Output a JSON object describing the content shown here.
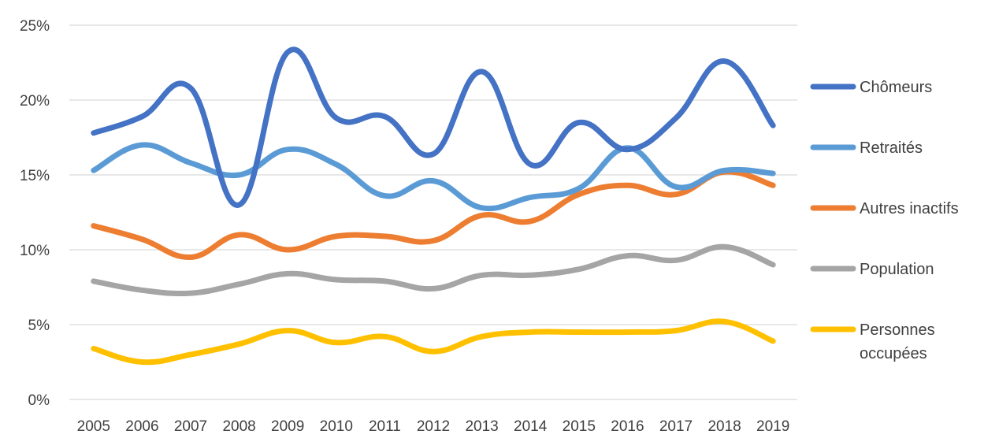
{
  "chart_data": {
    "type": "line",
    "title": "",
    "xlabel": "",
    "ylabel": "",
    "x": [
      "2005",
      "2006",
      "2007",
      "2008",
      "2009",
      "2010",
      "2011",
      "2012",
      "2013",
      "2014",
      "2015",
      "2016",
      "2017",
      "2018",
      "2019"
    ],
    "y_ticks": [
      "0%",
      "5%",
      "10%",
      "15%",
      "20%",
      "25%"
    ],
    "ylim": [
      0,
      25
    ],
    "grid": true,
    "legend_position": "right",
    "smooth": true,
    "series": [
      {
        "name": "Chômeurs",
        "color": "#4472C4",
        "values": [
          17.8,
          18.9,
          20.8,
          13.0,
          23.2,
          18.8,
          18.9,
          16.4,
          21.9,
          15.7,
          18.5,
          16.7,
          18.8,
          22.6,
          18.3
        ]
      },
      {
        "name": "Retraités",
        "color": "#5B9BD5",
        "values": [
          15.3,
          17.0,
          15.8,
          15.0,
          16.7,
          15.7,
          13.6,
          14.6,
          12.8,
          13.5,
          14.1,
          16.8,
          14.2,
          15.3,
          15.1
        ]
      },
      {
        "name": "Autres inactifs",
        "color": "#ED7D31",
        "values": [
          11.6,
          10.7,
          9.5,
          11.0,
          10.0,
          10.9,
          10.9,
          10.6,
          12.3,
          11.9,
          13.7,
          14.3,
          13.7,
          15.2,
          14.3
        ]
      },
      {
        "name": "Population",
        "color": "#A5A5A5",
        "values": [
          7.9,
          7.3,
          7.1,
          7.7,
          8.4,
          8.0,
          7.9,
          7.4,
          8.3,
          8.3,
          8.7,
          9.6,
          9.3,
          10.2,
          9.0
        ]
      },
      {
        "name": "Personnes occupées",
        "color": "#FFC000",
        "label_lines": [
          "Personnes",
          "occupées"
        ],
        "values": [
          3.4,
          2.5,
          3.0,
          3.7,
          4.6,
          3.8,
          4.2,
          3.2,
          4.2,
          4.5,
          4.5,
          4.5,
          4.6,
          5.2,
          3.9
        ]
      }
    ]
  }
}
